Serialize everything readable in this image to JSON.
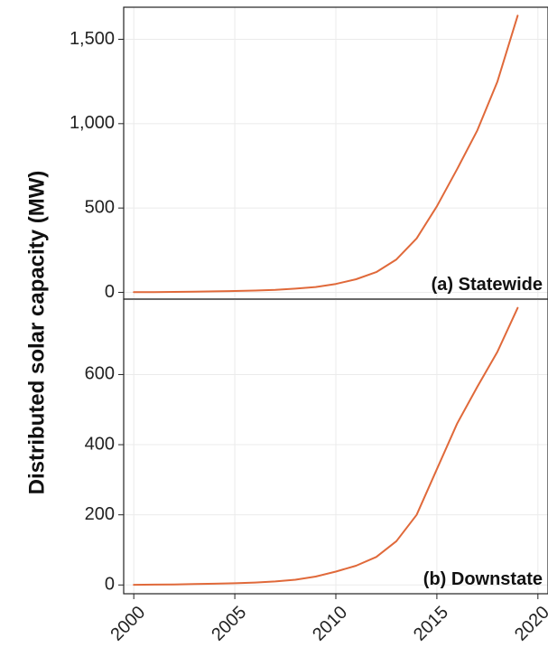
{
  "chart_data": [
    {
      "type": "line",
      "panel_label": "(a) Statewide",
      "ylabel": "Distributed solar capacity (MW)",
      "x": [
        2000,
        2001,
        2002,
        2003,
        2004,
        2005,
        2006,
        2007,
        2008,
        2009,
        2010,
        2011,
        2012,
        2013,
        2014,
        2015,
        2016,
        2017,
        2018,
        2019
      ],
      "series": [
        {
          "values": [
            1,
            2,
            3,
            4,
            6,
            8,
            11,
            15,
            22,
            32,
            50,
            78,
            120,
            195,
            320,
            510,
            730,
            960,
            1250,
            1640
          ]
        }
      ],
      "xlim": [
        1999.5,
        2020.5
      ],
      "ylim": [
        -40,
        1690
      ],
      "yticks": [
        0,
        500,
        1000,
        1500
      ],
      "ytick_labels": [
        "0",
        "500",
        "1,000",
        "1,500"
      ],
      "grid": true
    },
    {
      "type": "line",
      "panel_label": "(b) Downstate",
      "x": [
        2000,
        2001,
        2002,
        2003,
        2004,
        2005,
        2006,
        2007,
        2008,
        2009,
        2010,
        2011,
        2012,
        2013,
        2014,
        2015,
        2016,
        2017,
        2018,
        2019
      ],
      "series": [
        {
          "values": [
            0.5,
            1,
            1.5,
            2.5,
            3.5,
            5,
            7,
            10,
            15,
            24,
            38,
            55,
            80,
            125,
            200,
            330,
            460,
            565,
            665,
            790
          ]
        }
      ],
      "xlim": [
        1999.5,
        2020.5
      ],
      "ylim": [
        -25,
        815
      ],
      "yticks": [
        0,
        200,
        400,
        600
      ],
      "ytick_labels": [
        "0",
        "200",
        "400",
        "600"
      ],
      "xticks": [
        2000,
        2005,
        2010,
        2015,
        2020
      ],
      "xtick_labels": [
        "2000",
        "2005",
        "2010",
        "2015",
        "2020"
      ],
      "grid": true
    }
  ],
  "colors": {
    "line": "#e0693a"
  }
}
